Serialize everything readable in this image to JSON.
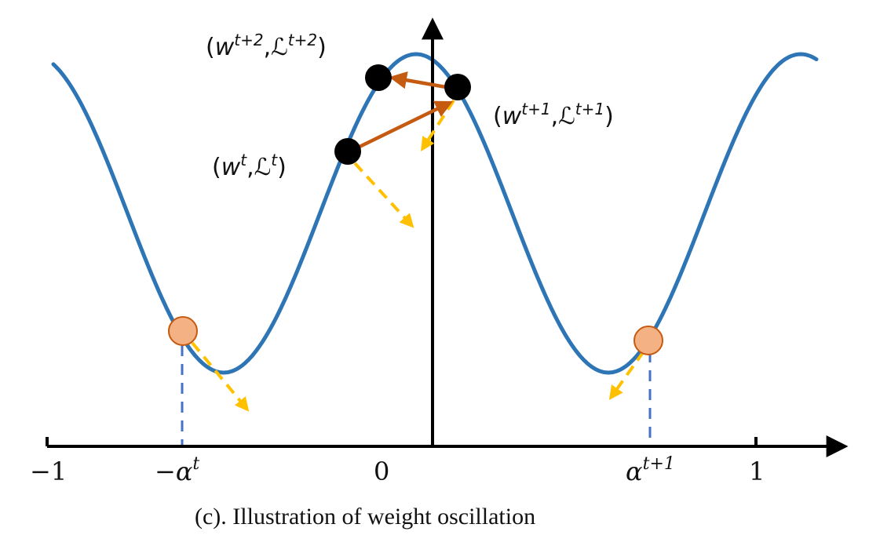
{
  "caption": "(c). Illustration of weight oscillation",
  "ticks": {
    "neg_one": "−1",
    "neg_alpha": "−α",
    "neg_alpha_sup": "t",
    "zero": "0",
    "alpha": "α",
    "alpha_sup": "t+1",
    "one": "1"
  },
  "points": {
    "p0": {
      "w": "w",
      "w_sup": "t",
      "comma": ",",
      "L": "ℒ",
      "L_sup": "t",
      "open": "(",
      "close": ")"
    },
    "p1": {
      "w": "w",
      "w_sup": "t+1",
      "comma": ",",
      "L": "ℒ",
      "L_sup": "t+1",
      "open": "(",
      "close": ")"
    },
    "p2": {
      "w": "w",
      "w_sup": "t+2",
      "comma": ",",
      "L": "ℒ",
      "L_sup": "t+2",
      "open": "(",
      "close": ")"
    }
  },
  "colors": {
    "curve": "#2e75b6",
    "axis": "#000000",
    "update_arrow": "#c55a11",
    "gradient_arrow": "#ffc000",
    "black_point": "#000000",
    "quant_point_fill": "#f4b183",
    "quant_point_stroke": "#c55a11",
    "dashed_drop": "#4472c4"
  }
}
